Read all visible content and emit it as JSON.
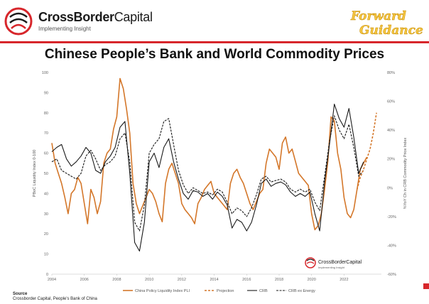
{
  "header": {
    "brand_bold": "CrossBorder",
    "brand_regular": "Capital",
    "tagline": "Implementing Insight",
    "badge_line1": "Forward",
    "badge_line2": "Guidance"
  },
  "watermark": {
    "brand": "CrossBorderCapital",
    "tagline": "Implementing Insight"
  },
  "footer": {
    "source_label": "Source",
    "source_text": "Crossborder Capital, People's Bank of China"
  },
  "colors": {
    "accent_red": "#d7262b",
    "pboc": "#d4772a",
    "crb": "#1a1a1a",
    "crb_ex_energy": "#1a1a1a"
  },
  "chart_data": {
    "type": "line",
    "title": "Chinese People’s Bank and World Commodity Prices",
    "xlabel": "",
    "ylabel": "PBoC Liquidity Index 0-100",
    "ylabel_right": "%YoY Ch in CRB Commodity Price Index",
    "xlim": [
      2004,
      2024.3
    ],
    "ylim": [
      0,
      100
    ],
    "ylim_right": [
      -60,
      80
    ],
    "x_ticks": [
      "2004",
      "2006",
      "2008",
      "2010",
      "2012",
      "2014",
      "2016",
      "2018",
      "2020",
      "2022"
    ],
    "y_ticks": [
      "0",
      "10",
      "20",
      "30",
      "40",
      "50",
      "60",
      "70",
      "80",
      "90",
      "100"
    ],
    "y_ticks_right": [
      "-60%",
      "-40%",
      "-20%",
      "0%",
      "20%",
      "40%",
      "60%",
      "80%"
    ],
    "legend_position": "bottom",
    "grid": false,
    "series": [
      {
        "name": "China Policy Liquidity Index PLI",
        "axis": "left",
        "style": "solid",
        "x": [
          2004.0,
          2004.2,
          2004.4,
          2004.6,
          2004.8,
          2005.0,
          2005.2,
          2005.4,
          2005.6,
          2005.8,
          2006.0,
          2006.2,
          2006.4,
          2006.6,
          2006.8,
          2007.0,
          2007.2,
          2007.4,
          2007.6,
          2007.8,
          2008.0,
          2008.2,
          2008.4,
          2008.6,
          2008.8,
          2009.0,
          2009.2,
          2009.4,
          2009.6,
          2009.8,
          2010.0,
          2010.2,
          2010.4,
          2010.6,
          2010.8,
          2011.0,
          2011.2,
          2011.4,
          2011.6,
          2011.8,
          2012.0,
          2012.2,
          2012.4,
          2012.6,
          2012.8,
          2013.0,
          2013.2,
          2013.4,
          2013.6,
          2013.8,
          2014.0,
          2014.2,
          2014.4,
          2014.6,
          2014.8,
          2015.0,
          2015.2,
          2015.4,
          2015.6,
          2015.8,
          2016.0,
          2016.2,
          2016.4,
          2016.6,
          2016.8,
          2017.0,
          2017.2,
          2017.4,
          2017.6,
          2017.8,
          2018.0,
          2018.2,
          2018.4,
          2018.6,
          2018.8,
          2019.0,
          2019.2,
          2019.4,
          2019.6,
          2019.8,
          2020.0,
          2020.2,
          2020.4,
          2020.6,
          2020.8,
          2021.0,
          2021.2,
          2021.4,
          2021.6,
          2021.8,
          2022.0,
          2022.2,
          2022.4,
          2022.6,
          2022.8,
          2023.0,
          2023.2,
          2023.4
        ],
        "values": [
          65,
          55,
          50,
          45,
          38,
          30,
          40,
          42,
          48,
          45,
          35,
          25,
          42,
          38,
          30,
          36,
          55,
          60,
          62,
          72,
          78,
          97,
          92,
          82,
          70,
          45,
          35,
          30,
          34,
          38,
          42,
          40,
          36,
          30,
          26,
          45,
          52,
          55,
          50,
          45,
          35,
          32,
          30,
          28,
          25,
          35,
          38,
          42,
          44,
          46,
          40,
          38,
          36,
          34,
          32,
          45,
          50,
          52,
          48,
          45,
          40,
          35,
          32,
          36,
          40,
          42,
          55,
          62,
          60,
          58,
          52,
          65,
          68,
          60,
          62,
          56,
          50,
          48,
          46,
          44,
          30,
          22,
          24,
          30,
          42,
          56,
          78,
          76,
          60,
          52,
          38,
          30,
          28,
          32,
          42,
          52,
          55,
          58
        ]
      },
      {
        "name": "Projection",
        "axis": "left",
        "style": "dashed",
        "x": [
          2022.8,
          2023.0,
          2023.2,
          2023.4,
          2023.6,
          2023.8,
          2024.0
        ],
        "values": [
          42,
          48,
          52,
          57,
          62,
          70,
          80
        ]
      },
      {
        "name": "CRB",
        "axis": "right",
        "style": "solid",
        "x": [
          2004.0,
          2004.3,
          2004.6,
          2004.9,
          2005.2,
          2005.5,
          2005.8,
          2006.1,
          2006.4,
          2006.7,
          2007.0,
          2007.3,
          2007.6,
          2007.9,
          2008.2,
          2008.5,
          2008.8,
          2009.1,
          2009.4,
          2009.7,
          2010.0,
          2010.3,
          2010.6,
          2010.9,
          2011.2,
          2011.5,
          2011.8,
          2012.1,
          2012.4,
          2012.7,
          2013.0,
          2013.3,
          2013.6,
          2013.9,
          2014.2,
          2014.5,
          2014.8,
          2015.1,
          2015.4,
          2015.7,
          2016.0,
          2016.3,
          2016.6,
          2016.9,
          2017.2,
          2017.5,
          2017.8,
          2018.1,
          2018.4,
          2018.7,
          2019.0,
          2019.3,
          2019.6,
          2019.9,
          2020.2,
          2020.5,
          2020.8,
          2021.1,
          2021.4,
          2021.7,
          2022.0,
          2022.3,
          2022.6,
          2022.9,
          2023.2
        ],
        "values": [
          25,
          28,
          30,
          20,
          15,
          18,
          22,
          28,
          24,
          12,
          10,
          18,
          22,
          28,
          42,
          46,
          10,
          -38,
          -44,
          -24,
          18,
          24,
          14,
          28,
          34,
          18,
          6,
          -4,
          -8,
          -2,
          -3,
          -6,
          -4,
          -8,
          -3,
          -6,
          -12,
          -28,
          -22,
          -24,
          -30,
          -24,
          -12,
          3,
          6,
          1,
          3,
          4,
          2,
          -3,
          -6,
          -4,
          -6,
          -3,
          -18,
          -30,
          4,
          30,
          58,
          48,
          42,
          55,
          35,
          10,
          18
        ]
      },
      {
        "name": "CRB ex Energy",
        "axis": "right",
        "style": "dashed",
        "x": [
          2004.0,
          2004.3,
          2004.6,
          2004.9,
          2005.2,
          2005.5,
          2005.8,
          2006.1,
          2006.4,
          2006.7,
          2007.0,
          2007.3,
          2007.6,
          2007.9,
          2008.2,
          2008.5,
          2008.8,
          2009.1,
          2009.4,
          2009.7,
          2010.0,
          2010.3,
          2010.6,
          2010.9,
          2011.2,
          2011.5,
          2011.8,
          2012.1,
          2012.4,
          2012.7,
          2013.0,
          2013.3,
          2013.6,
          2013.9,
          2014.2,
          2014.5,
          2014.8,
          2015.1,
          2015.4,
          2015.7,
          2016.0,
          2016.3,
          2016.6,
          2016.9,
          2017.2,
          2017.5,
          2017.8,
          2018.1,
          2018.4,
          2018.7,
          2019.0,
          2019.3,
          2019.6,
          2019.9,
          2020.2,
          2020.5,
          2020.8,
          2021.1,
          2021.4,
          2021.7,
          2022.0,
          2022.3,
          2022.6,
          2022.9,
          2023.2
        ],
        "values": [
          18,
          20,
          12,
          10,
          8,
          6,
          10,
          22,
          26,
          20,
          12,
          16,
          18,
          22,
          34,
          38,
          18,
          -24,
          -30,
          -12,
          24,
          30,
          34,
          46,
          48,
          30,
          12,
          2,
          -4,
          0,
          -2,
          -4,
          -3,
          -5,
          -1,
          -3,
          -10,
          -18,
          -14,
          -16,
          -20,
          -14,
          -5,
          6,
          8,
          4,
          5,
          6,
          4,
          -1,
          -3,
          -1,
          -3,
          -1,
          -10,
          -16,
          8,
          32,
          50,
          40,
          34,
          44,
          28,
          8,
          12
        ]
      }
    ]
  }
}
